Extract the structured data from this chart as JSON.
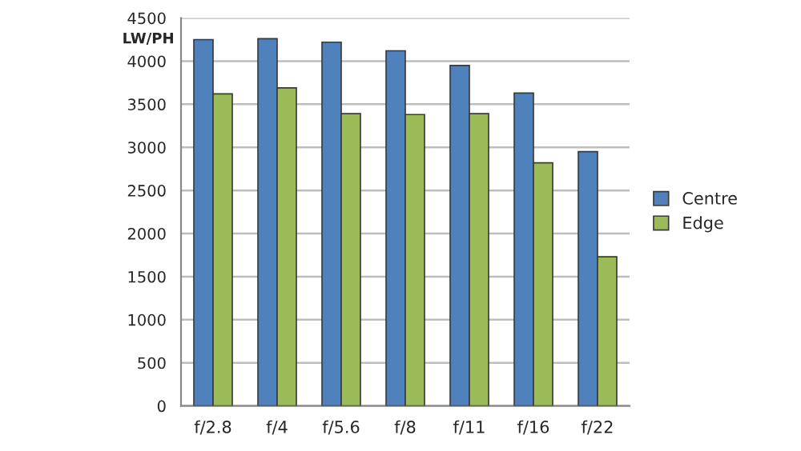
{
  "chart_data": {
    "type": "bar",
    "ylabel": "LW/PH",
    "categories": [
      "f/2.8",
      "f/4",
      "f/5.6",
      "f/8",
      "f/11",
      "f/16",
      "f/22"
    ],
    "series": [
      {
        "name": "Centre",
        "color": "#4f81bd",
        "values": [
          4250,
          4260,
          4220,
          4120,
          3950,
          3630,
          2950
        ]
      },
      {
        "name": "Edge",
        "color": "#9bbb59",
        "values": [
          3620,
          3690,
          3390,
          3380,
          3390,
          2820,
          1730
        ]
      }
    ],
    "ylim": [
      0,
      4500
    ],
    "yticks": [
      0,
      500,
      1000,
      1500,
      2000,
      2500,
      3000,
      3500,
      4000,
      4500
    ],
    "grid": "y",
    "legend": "right"
  }
}
